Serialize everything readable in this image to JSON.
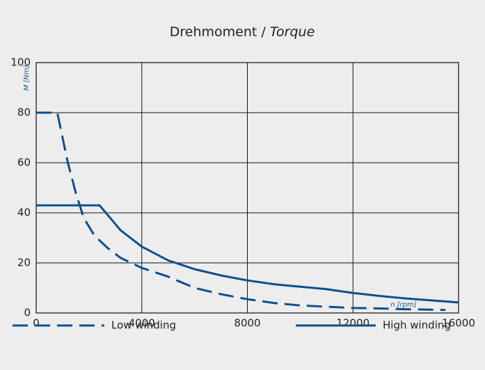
{
  "chart_data": {
    "type": "line",
    "title": "Drehmoment /",
    "subtitle": "Torque",
    "x_label": "n [rpm]",
    "y_label": "M [Nm]",
    "xlim": [
      0,
      16000
    ],
    "xticks": [
      0,
      4000,
      8000,
      12000,
      16000
    ],
    "ylim": [
      0,
      100
    ],
    "yticks": [
      0,
      20,
      40,
      60,
      80,
      100
    ],
    "grid": true,
    "legend": "bottom",
    "series": [
      {
        "name": "Low winding",
        "color": "#0b4f8e",
        "dash": true,
        "x": [
          0,
          800,
          1000,
          1200,
          1500,
          1800,
          2200,
          2700,
          3200,
          4000,
          5000,
          6000,
          7000,
          8000,
          9000,
          10000,
          11000,
          12000,
          13000,
          14000,
          15500
        ],
        "values": [
          80,
          80,
          70,
          60,
          48,
          38,
          31,
          26,
          22,
          18,
          14.5,
          10,
          7.5,
          5.5,
          4,
          3,
          2.5,
          2,
          1.8,
          1.5,
          1.2
        ]
      },
      {
        "name": "High winding",
        "color": "#0b4f8e",
        "dash": false,
        "x": [
          0,
          2400,
          2800,
          3200,
          4000,
          5000,
          6000,
          7000,
          8000,
          9000,
          10000,
          11000,
          12000,
          13000,
          14000,
          15000,
          16000
        ],
        "values": [
          43,
          43,
          38,
          33,
          26.5,
          21,
          17.5,
          15,
          13,
          11.5,
          10.5,
          9.5,
          8,
          6.8,
          5.8,
          5,
          4.2
        ]
      }
    ]
  }
}
